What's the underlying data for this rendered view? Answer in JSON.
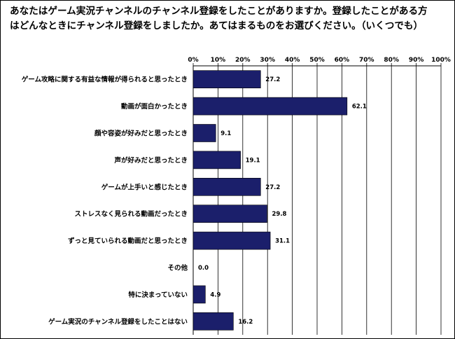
{
  "chart_data": {
    "type": "bar",
    "orientation": "horizontal",
    "title": "あなたはゲーム実況チャンネルのチャンネル登録をしたことがありますか。登録したことがある方はどんなときにチャンネル登録をしましたか。あてはまるものをお選びください。（いくつでも）",
    "categories": [
      "ゲーム攻略に関する有益な情報が得られると思ったとき",
      "動画が面白かったとき",
      "顔や容姿が好みだと思ったとき",
      "声が好みだと思ったとき",
      "ゲームが上手いと感じたとき",
      "ストレスなく見られる動画だったとき",
      "ずっと見ていられる動画だと思ったとき",
      "その他",
      "特に決まっていない",
      "ゲーム実況のチャンネル登録をしたことはない"
    ],
    "values": [
      27.2,
      62.1,
      9.1,
      19.1,
      27.2,
      29.8,
      31.1,
      0.0,
      4.9,
      16.2
    ],
    "value_labels": [
      "27.2",
      "62.1",
      "9.1",
      "19.1",
      "27.2",
      "29.8",
      "31.1",
      "0.0",
      "4.9",
      "16.2"
    ],
    "xlim": [
      0,
      100
    ],
    "x_ticks": [
      "0%",
      "10%",
      "20%",
      "30%",
      "40%",
      "50%",
      "60%",
      "70%",
      "80%",
      "90%",
      "100%"
    ],
    "axis_position": "top",
    "grid": true,
    "bar_color": "#1b1f6b"
  }
}
